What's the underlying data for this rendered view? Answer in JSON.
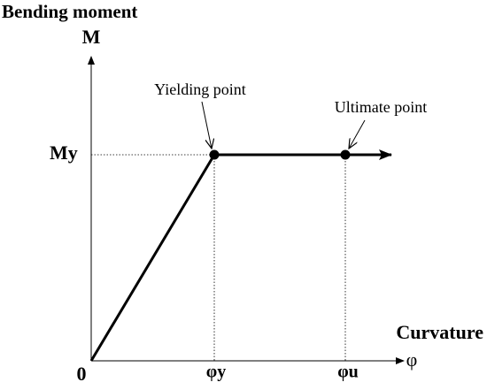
{
  "y_axis": {
    "title": "Bending moment",
    "symbol": "M",
    "yield_label": "My"
  },
  "x_axis": {
    "title": "Curvature",
    "symbol": "φ",
    "origin": "0",
    "yield_label": "φy",
    "ultimate_label": "φu"
  },
  "annotations": {
    "yielding": "Yielding point",
    "ultimate": "Ultimate point"
  }
}
